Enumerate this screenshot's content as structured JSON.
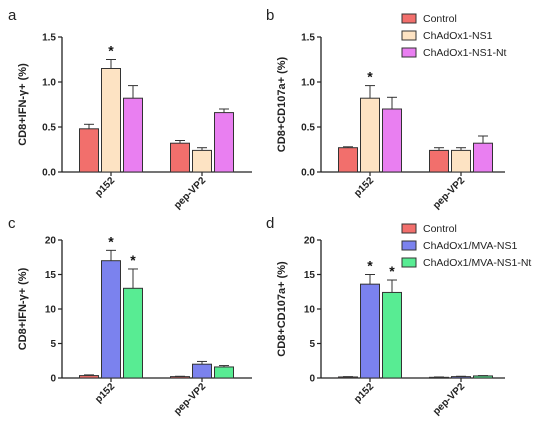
{
  "chart_data": [
    {
      "panel": "a",
      "type": "bar",
      "ylabel": "CD8+IFN-γ+ (%)",
      "categories": [
        "p152",
        "pep-VP2"
      ],
      "ylim": [
        0,
        1.5
      ],
      "yticks": [
        "0.0",
        "0.5",
        "1.0",
        "1.5"
      ],
      "series": [
        {
          "name": "Control",
          "color": "#f26f6c",
          "values": [
            0.48,
            0.32
          ],
          "errors": [
            0.05,
            0.03
          ]
        },
        {
          "name": "ChAdOx1-NS1",
          "color": "#fde3c3",
          "values": [
            1.15,
            0.24
          ],
          "errors": [
            0.1,
            0.03
          ]
        },
        {
          "name": "ChAdOx1-NS1-Nt",
          "color": "#e97ff1",
          "values": [
            0.82,
            0.66
          ],
          "errors": [
            0.14,
            0.04
          ]
        }
      ],
      "significance": [
        {
          "series": 1,
          "category": 0,
          "label": "*"
        }
      ]
    },
    {
      "panel": "b",
      "type": "bar",
      "ylabel": "CD8+CD107a+ (%)",
      "categories": [
        "p152",
        "pep-VP2"
      ],
      "ylim": [
        0,
        1.5
      ],
      "yticks": [
        "0.0",
        "0.5",
        "1.0",
        "1.5"
      ],
      "series": [
        {
          "name": "Control",
          "color": "#f26f6c",
          "values": [
            0.27,
            0.24
          ],
          "errors": [
            0.01,
            0.03
          ]
        },
        {
          "name": "ChAdOx1-NS1",
          "color": "#fde3c3",
          "values": [
            0.82,
            0.24
          ],
          "errors": [
            0.14,
            0.03
          ]
        },
        {
          "name": "ChAdOx1-NS1-Nt",
          "color": "#e97ff1",
          "values": [
            0.7,
            0.32
          ],
          "errors": [
            0.13,
            0.08
          ]
        }
      ],
      "significance": [
        {
          "series": 1,
          "category": 0,
          "label": "*"
        }
      ]
    },
    {
      "panel": "c",
      "type": "bar",
      "ylabel": "CD8+IFN-γ+ (%)",
      "categories": [
        "p152",
        "pep-VP2"
      ],
      "ylim": [
        0,
        20
      ],
      "yticks": [
        "0",
        "5",
        "10",
        "15",
        "20"
      ],
      "series": [
        {
          "name": "Control",
          "color": "#f26f6c",
          "values": [
            0.35,
            0.2
          ],
          "errors": [
            0.1,
            0.05
          ]
        },
        {
          "name": "ChAdOx1/MVA-NS1",
          "color": "#7b82ee",
          "values": [
            17.0,
            2.0
          ],
          "errors": [
            1.5,
            0.4
          ]
        },
        {
          "name": "ChAdOx1/MVA-NS1-Nt",
          "color": "#58ec93",
          "values": [
            13.0,
            1.6
          ],
          "errors": [
            2.8,
            0.2
          ]
        }
      ],
      "significance": [
        {
          "series": 1,
          "category": 0,
          "label": "*"
        },
        {
          "series": 2,
          "category": 0,
          "label": "*"
        }
      ]
    },
    {
      "panel": "d",
      "type": "bar",
      "ylabel": "CD8+CD107a+ (%)",
      "categories": [
        "p152",
        "pep-VP2"
      ],
      "ylim": [
        0,
        20
      ],
      "yticks": [
        "0",
        "5",
        "10",
        "15",
        "20"
      ],
      "series": [
        {
          "name": "Control",
          "color": "#f26f6c",
          "values": [
            0.15,
            0.1
          ],
          "errors": [
            0.05,
            0.05
          ]
        },
        {
          "name": "ChAdOx1/MVA-NS1",
          "color": "#7b82ee",
          "values": [
            13.6,
            0.2
          ],
          "errors": [
            1.4,
            0.05
          ]
        },
        {
          "name": "ChAdOx1/MVA-NS1-Nt",
          "color": "#58ec93",
          "values": [
            12.4,
            0.3
          ],
          "errors": [
            1.8,
            0.05
          ]
        }
      ],
      "significance": [
        {
          "series": 1,
          "category": 0,
          "label": "*"
        },
        {
          "series": 2,
          "category": 0,
          "label": "*"
        }
      ]
    }
  ],
  "legends": [
    {
      "items": [
        "Control",
        "ChAdOx1-NS1",
        "ChAdOx1-NS1-Nt"
      ],
      "colors": [
        "#f26f6c",
        "#fde3c3",
        "#e97ff1"
      ]
    },
    {
      "items": [
        "Control",
        "ChAdOx1/MVA-NS1",
        "ChAdOx1/MVA-NS1-Nt"
      ],
      "colors": [
        "#f26f6c",
        "#7b82ee",
        "#58ec93"
      ]
    }
  ]
}
